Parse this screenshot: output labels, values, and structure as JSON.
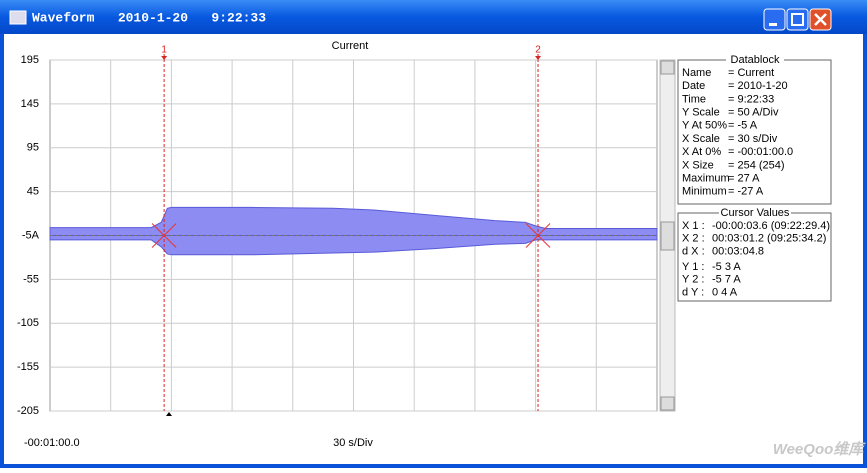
{
  "window": {
    "title": "Waveform   2010-1-20   9:22:33"
  },
  "chart_data": {
    "type": "band",
    "title": "Current",
    "x": [
      -60,
      -10,
      -5,
      -2,
      0,
      40,
      80,
      100,
      130,
      160,
      175,
      180,
      185,
      240
    ],
    "upper": [
      4,
      4,
      10,
      26,
      27,
      27,
      26,
      24,
      18,
      12,
      10,
      6,
      3,
      3
    ],
    "lower": [
      -10,
      -10,
      -18,
      -26,
      -27,
      -27,
      -25,
      -24,
      -20,
      -15,
      -14,
      -10,
      -10,
      -10
    ],
    "color": "#8c8cf2",
    "xlim": [
      -60,
      240
    ],
    "xticks": [
      {
        "value": -60,
        "label": "-00:01:00.0"
      }
    ],
    "x_scale_label": "30 s/Div",
    "ylim": [
      -205,
      195
    ],
    "yticks": [
      195,
      145,
      95,
      45,
      {
        "value": -5,
        "label": "-5A"
      },
      -55,
      -105,
      -155,
      -205
    ],
    "grid": true,
    "cursors": [
      {
        "label": "1",
        "x": -3.6
      },
      {
        "label": "2",
        "x": 181.2
      }
    ]
  },
  "datablock": {
    "title": "Datablock",
    "rows": [
      [
        "Name",
        "= Current"
      ],
      [
        "Date",
        "= 2010-1-20"
      ],
      [
        "Time",
        "= 9:22:33"
      ],
      [
        "Y Scale",
        "=    50 A/Div"
      ],
      [
        "Y At 50%",
        "=    -5 A"
      ],
      [
        "X Scale",
        "=    30 s/Div"
      ],
      [
        "X At 0%",
        "= -00:01:00.0"
      ],
      [
        "X Size",
        "= 254 (254)"
      ],
      [
        "Maximum",
        "=    27 A"
      ],
      [
        "Minimum",
        "=   -27 A"
      ]
    ]
  },
  "cursor_values": {
    "title": "Cursor Values",
    "rows": [
      [
        "X 1 :",
        "-00:00:03.6 (09:22:29.4)"
      ],
      [
        "X 2 :",
        "00:03:01.2 (09:25:34.2)"
      ],
      [
        "d X :",
        "00:03:04.8"
      ],
      [
        "Y 1 :",
        "-5      3 A"
      ],
      [
        "Y 2 :",
        "-5      7 A"
      ],
      [
        "d Y :",
        "0      4 A"
      ]
    ]
  },
  "watermark": "WeeQoo维库"
}
